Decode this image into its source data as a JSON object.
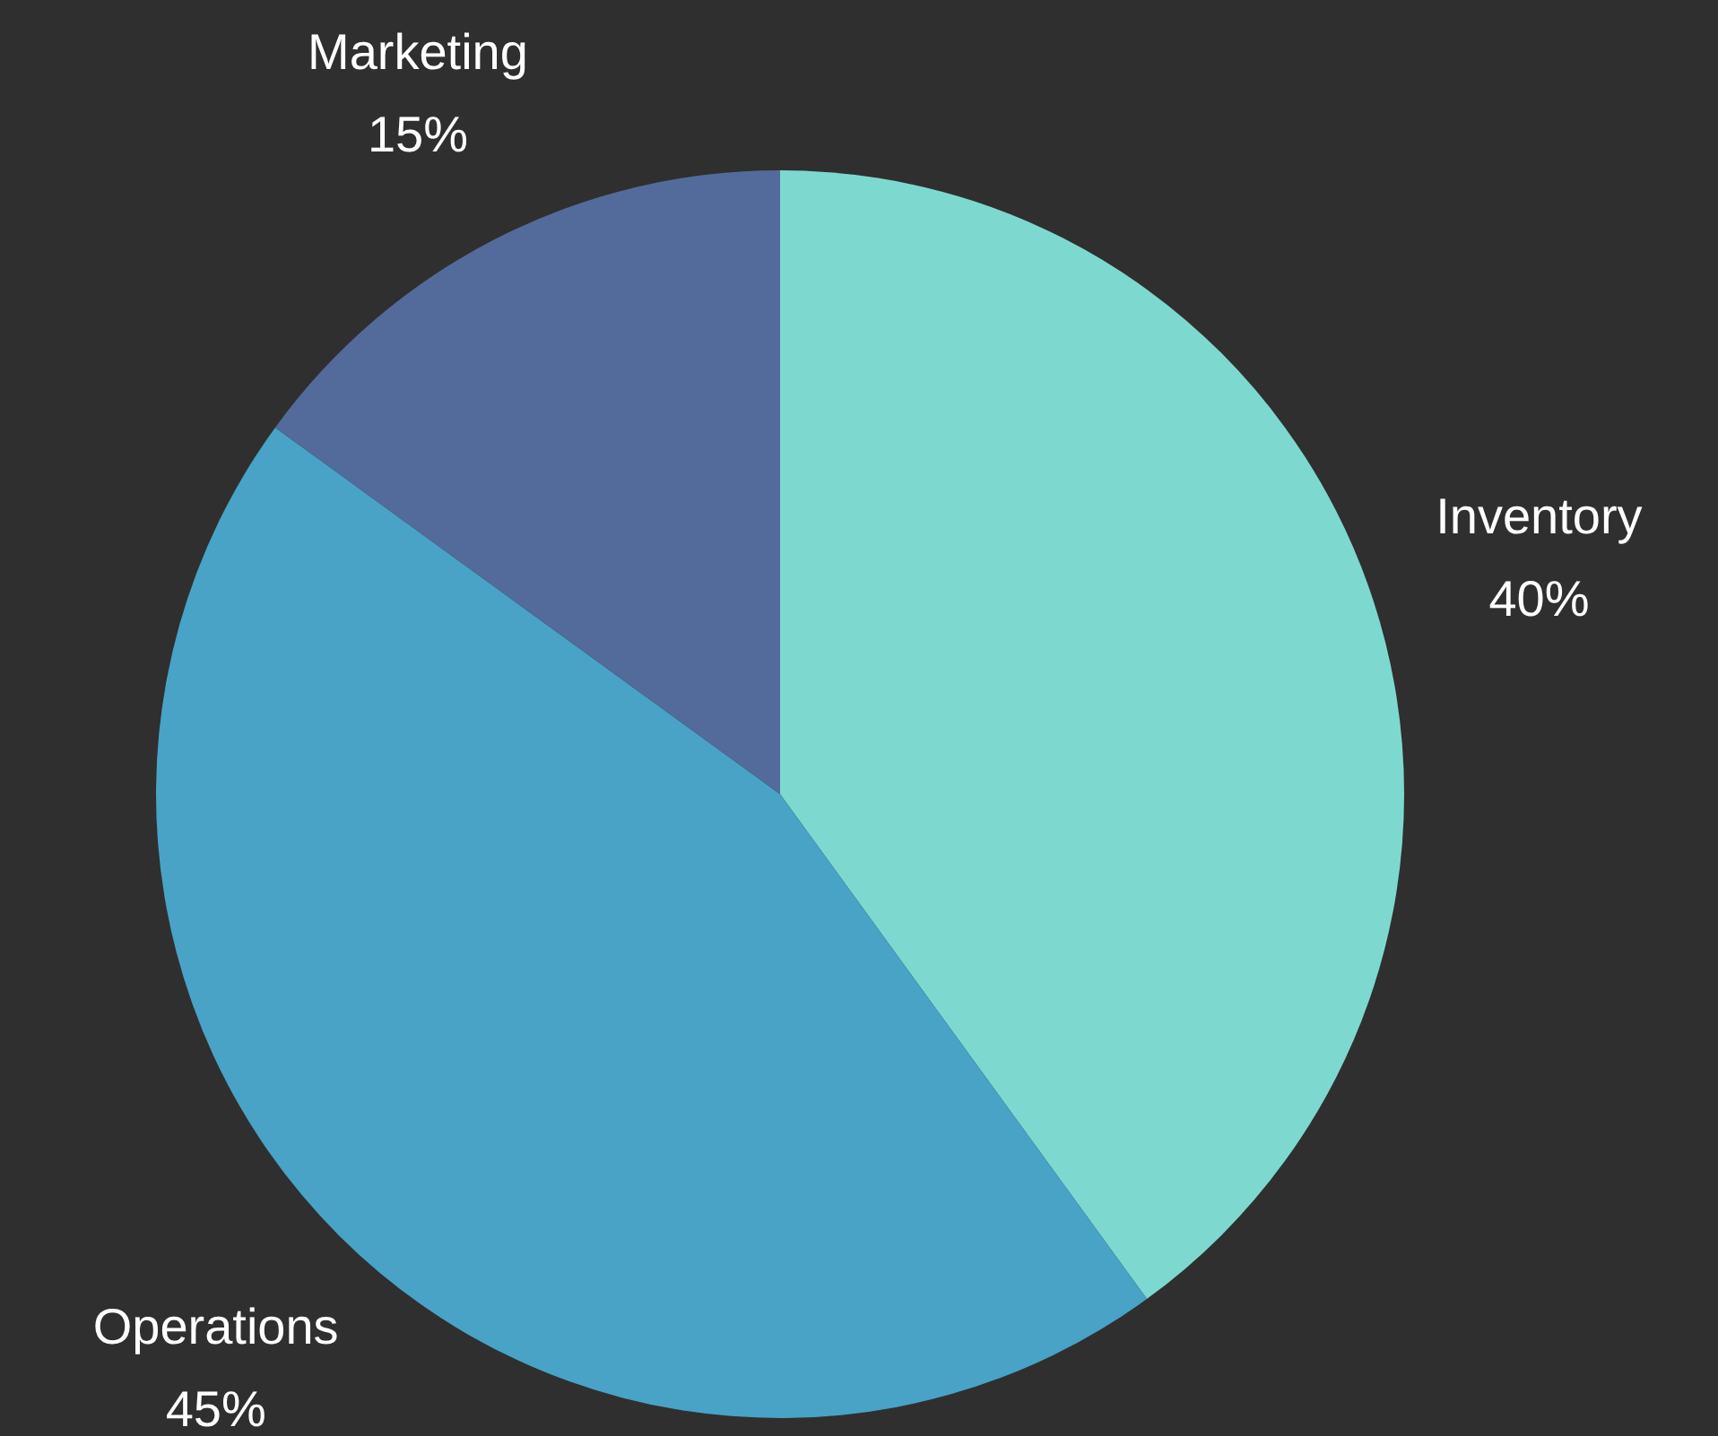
{
  "chart_data": {
    "type": "pie",
    "categories": [
      "Inventory",
      "Operations",
      "Marketing"
    ],
    "values": [
      40,
      45,
      15
    ],
    "colors": [
      "#7dd9d0",
      "#48a3c6",
      "#536b9b"
    ],
    "value_labels": [
      "40%",
      "45%",
      "15%"
    ]
  }
}
